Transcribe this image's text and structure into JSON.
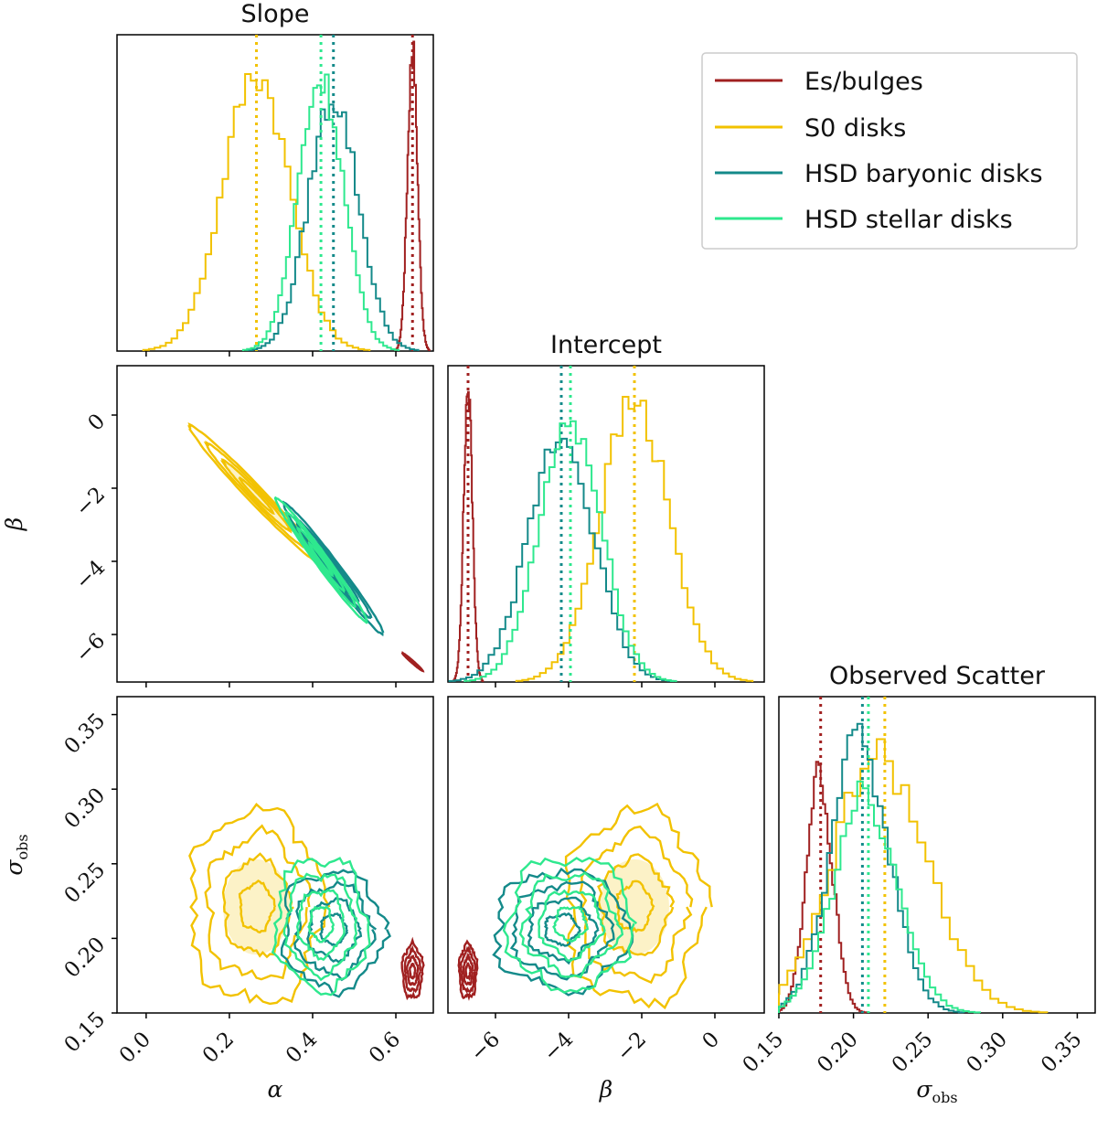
{
  "chart_data": {
    "type": "corner",
    "panel_titles": {
      "alpha": "Slope",
      "beta": "Intercept",
      "sigma": "Observed Scatter"
    },
    "params": [
      "alpha",
      "beta",
      "sigma_obs"
    ],
    "axis_labels": {
      "alpha": "α",
      "beta": "β",
      "sigma": "σ",
      "sigma_sub": "obs"
    },
    "ranges": {
      "alpha": [
        -0.07,
        0.69
      ],
      "beta": [
        -7.3,
        1.35
      ],
      "sigma": [
        0.15,
        0.362
      ]
    },
    "ticks": {
      "alpha": [
        "0.0",
        "0.2",
        "0.4",
        "0.6"
      ],
      "beta": [
        "−6",
        "−4",
        "−2",
        "0"
      ],
      "sigma": [
        "0.15",
        "0.20",
        "0.25",
        "0.30",
        "0.35"
      ]
    },
    "legend": {
      "position": "top-right",
      "entries": [
        "Es/bulges",
        "S0 disks",
        "HSD baryonic disks",
        "HSD stellar disks"
      ]
    },
    "series": [
      {
        "name": "Es/bulges",
        "color": "#a02020",
        "mean": {
          "alpha": 0.64,
          "beta": -6.75,
          "sigma": 0.178
        },
        "sd": {
          "alpha": 0.012,
          "beta": 0.12,
          "sigma": 0.009
        },
        "peak": {
          "alpha": 0.96,
          "beta": 0.93,
          "sigma": 0.69
        }
      },
      {
        "name": "S0 disks",
        "color": "#f2c200",
        "mean": {
          "alpha": 0.265,
          "beta": -2.2,
          "sigma": 0.221
        },
        "sd": {
          "alpha": 0.08,
          "beta": 0.95,
          "sigma": 0.032
        },
        "peak": {
          "alpha": 0.88,
          "beta": 0.88,
          "sigma": 0.76
        }
      },
      {
        "name": "HSD baryonic disks",
        "color": "#148a8a",
        "mean": {
          "alpha": 0.45,
          "beta": -4.2,
          "sigma": 0.206
        },
        "sd": {
          "alpha": 0.06,
          "beta": 0.9,
          "sigma": 0.02
        },
        "peak": {
          "alpha": 0.8,
          "beta": 0.77,
          "sigma": 0.8
        }
      },
      {
        "name": "HSD stellar disks",
        "color": "#2ee88e",
        "mean": {
          "alpha": 0.42,
          "beta": -3.95,
          "sigma": 0.21
        },
        "sd": {
          "alpha": 0.055,
          "beta": 0.85,
          "sigma": 0.022
        },
        "peak": {
          "alpha": 0.86,
          "beta": 0.82,
          "sigma": 0.62
        }
      }
    ],
    "correlation": {
      "alpha_beta": -0.985,
      "alpha_sigma": 0.0,
      "beta_sigma": 0.0
    }
  }
}
